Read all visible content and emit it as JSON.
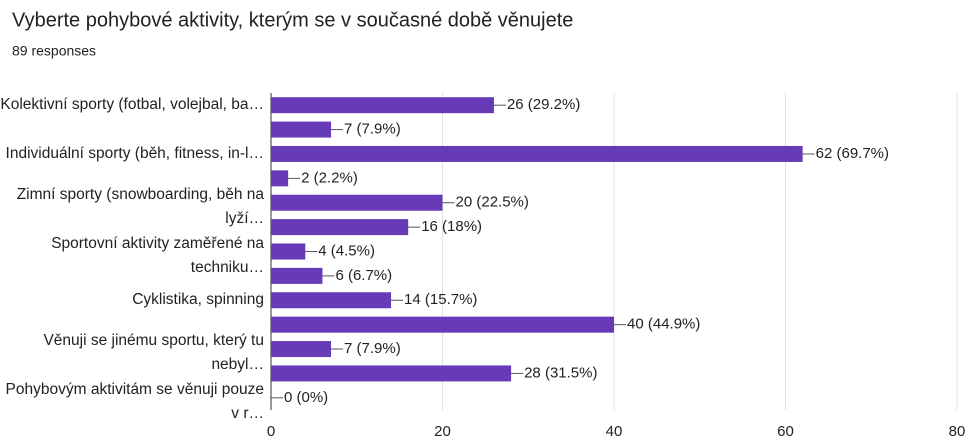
{
  "chart_data": {
    "type": "bar",
    "orientation": "horizontal",
    "title": "Vyberte pohybové aktivity, kterým se v současné době věnujete",
    "subtitle": "89 responses",
    "categories": [
      "Kolektivní sporty (fotbal, volejbal, ba…",
      null,
      "Individuální sporty (běh, fitness, in-l…",
      null,
      "Zimní sporty (snowboarding, běh na lyží…",
      null,
      "Sportovní aktivity zaměřené na techniku…",
      null,
      "Cyklistika, spinning",
      null,
      "Věnuji se jinému sportu, který tu nebyl…",
      null,
      "Pohybovým aktivitám se věnuji pouze v r…"
    ],
    "values": [
      26,
      7,
      62,
      2,
      20,
      16,
      4,
      6,
      14,
      40,
      7,
      28,
      0
    ],
    "value_labels": [
      "26 (29.2%)",
      "7 (7.9%)",
      "62 (69.7%)",
      "2 (2.2%)",
      "20 (22.5%)",
      "16 (18%)",
      "4 (4.5%)",
      "6 (6.7%)",
      "14 (15.7%)",
      "40 (44.9%)",
      "7 (7.9%)",
      "28 (31.5%)",
      "0 (0%)"
    ],
    "color": "#673ab7",
    "xlim": [
      0,
      80
    ],
    "xticks": [
      0,
      20,
      40,
      60,
      80
    ],
    "grid": true
  }
}
